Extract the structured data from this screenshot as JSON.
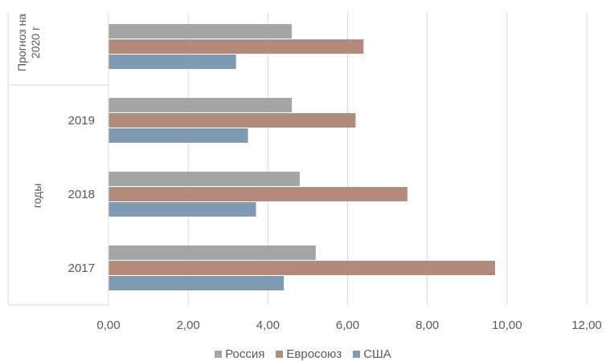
{
  "chart_data": {
    "type": "bar",
    "orientation": "horizontal",
    "categories": [
      "2017",
      "2018",
      "2019",
      "Прогноз на 2020 г"
    ],
    "group_label": "годы",
    "series": [
      {
        "name": "Россия",
        "values": [
          5.2,
          4.8,
          4.6,
          4.6
        ],
        "color": "#a5a5a5"
      },
      {
        "name": "Евросоюз",
        "values": [
          9.7,
          7.5,
          6.2,
          6.4
        ],
        "color": "#b38b7d"
      },
      {
        "name": "США",
        "values": [
          4.4,
          3.7,
          3.5,
          3.2
        ],
        "color": "#7f9bb3"
      }
    ],
    "xlim": [
      0,
      12
    ],
    "xticks": [
      0,
      2,
      4,
      6,
      8,
      10,
      12
    ],
    "xtick_labels": [
      "0,00",
      "2,00",
      "4,00",
      "6,00",
      "8,00",
      "10,00",
      "12,00"
    ],
    "grid": true,
    "legend_position": "bottom"
  }
}
